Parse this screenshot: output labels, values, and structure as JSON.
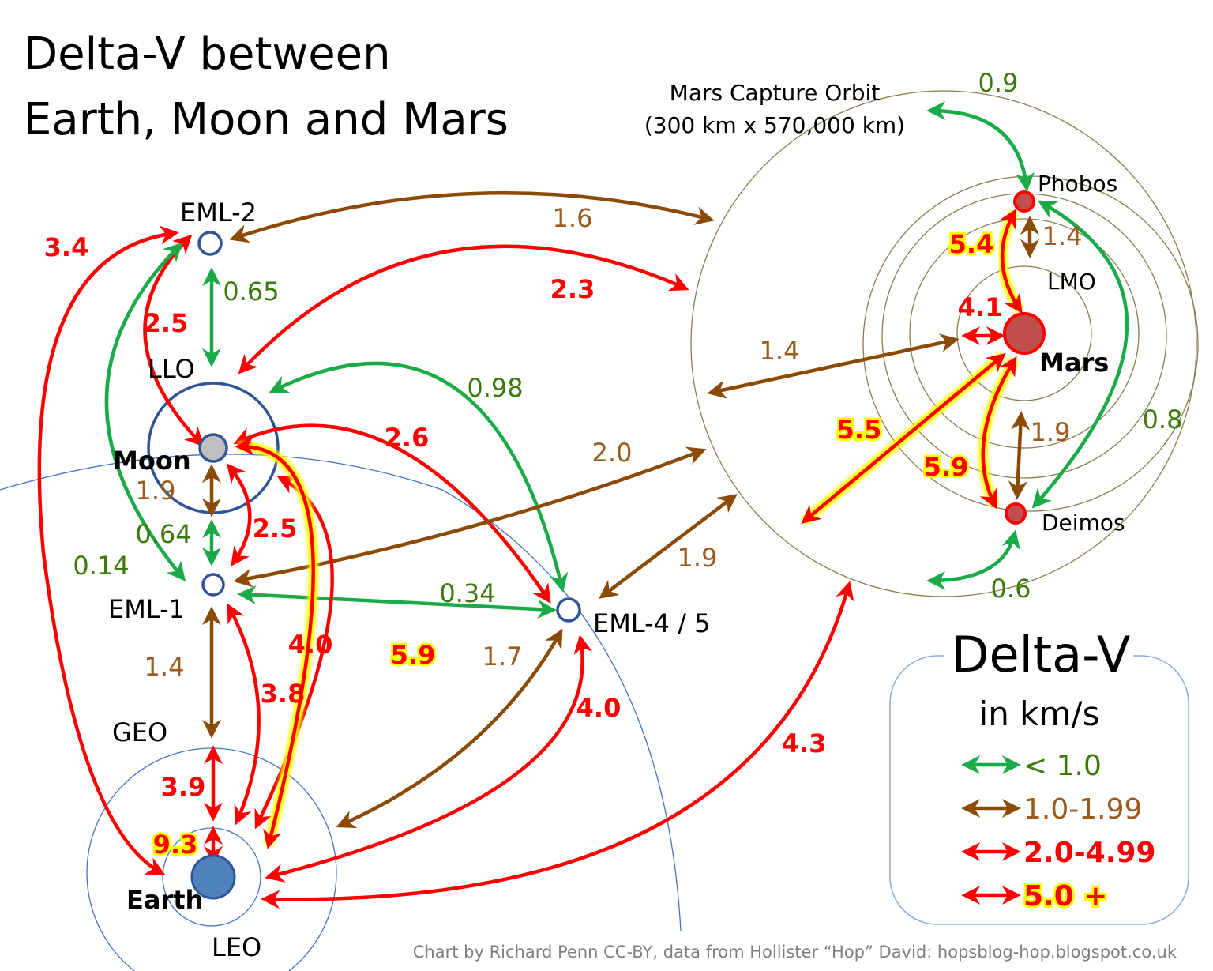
{
  "title": [
    "Delta-V between",
    "Earth, Moon and Mars"
  ],
  "colors": {
    "green": "#1aaa48",
    "brown": "#8b4a05",
    "red": "#ff0000",
    "glow": "#ffff00",
    "earth_orbits": "#4472c4",
    "mars_orbits": "#8c7b50"
  },
  "nodes": {
    "eml2": "EML-2",
    "llo": "LLO",
    "moon": "Moon",
    "eml1": "EML-1",
    "eml45": "EML-4 / 5",
    "geo": "GEO",
    "earth": "Earth",
    "leo": "LEO",
    "mars_capture": [
      "Mars Capture Orbit",
      "(300 km x 570,000 km)"
    ],
    "phobos": "Phobos",
    "lmo": "LMO",
    "mars": "Mars",
    "deimos": "Deimos"
  },
  "edges": [
    {
      "value": "1.6",
      "cat": "brown"
    },
    {
      "value": "2.3",
      "cat": "red"
    },
    {
      "value": "0.65",
      "cat": "green"
    },
    {
      "value": "2.5",
      "cat": "red"
    },
    {
      "value": "0.14",
      "cat": "green"
    },
    {
      "value": "3.4",
      "cat": "red"
    },
    {
      "value": "0.98",
      "cat": "green"
    },
    {
      "value": "2.6",
      "cat": "red"
    },
    {
      "value": "1.9",
      "cat": "brown"
    },
    {
      "value": "2.5",
      "cat": "red"
    },
    {
      "value": "0.64",
      "cat": "green"
    },
    {
      "value": "2.0",
      "cat": "brown"
    },
    {
      "value": "0.34",
      "cat": "green"
    },
    {
      "value": "1.4",
      "cat": "brown"
    },
    {
      "value": "3.8",
      "cat": "red"
    },
    {
      "value": "4.0",
      "cat": "red"
    },
    {
      "value": "5.9",
      "cat": "yellow"
    },
    {
      "value": "1.7",
      "cat": "brown"
    },
    {
      "value": "4.0",
      "cat": "red"
    },
    {
      "value": "4.3",
      "cat": "red"
    },
    {
      "value": "3.9",
      "cat": "red"
    },
    {
      "value": "9.3",
      "cat": "yellow"
    },
    {
      "value": "1.9",
      "cat": "brown"
    },
    {
      "value": "1.4",
      "cat": "brown"
    },
    {
      "value": "4.1",
      "cat": "red"
    },
    {
      "value": "0.9",
      "cat": "green"
    },
    {
      "value": "1.4",
      "cat": "brown"
    },
    {
      "value": "5.4",
      "cat": "yellow"
    },
    {
      "value": "5.5",
      "cat": "yellow"
    },
    {
      "value": "5.9",
      "cat": "yellow"
    },
    {
      "value": "1.9",
      "cat": "brown"
    },
    {
      "value": "0.8",
      "cat": "green"
    },
    {
      "value": "0.6",
      "cat": "green"
    }
  ],
  "legend": {
    "title": "Delta-V",
    "subtitle": "in km/s",
    "items": [
      {
        "label": "< 1.0",
        "cat": "green"
      },
      {
        "label": "1.0-1.99",
        "cat": "brown"
      },
      {
        "label": "2.0-4.99",
        "cat": "red"
      },
      {
        "label": "5.0 +",
        "cat": "yellow"
      }
    ]
  },
  "credit": "Chart by Richard Penn CC-BY, data from Hollister “Hop” David: hopsblog-hop.blogspot.co.uk"
}
